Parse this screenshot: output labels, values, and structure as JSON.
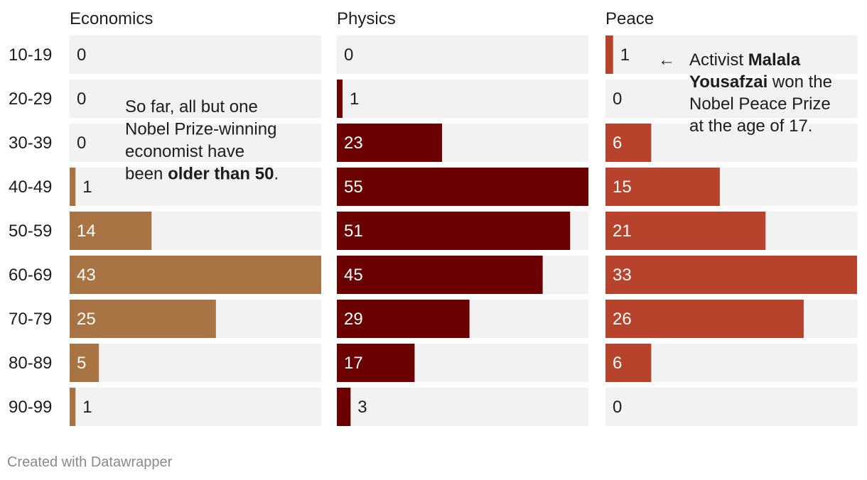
{
  "footer": "Created with Datawrapper",
  "chart_data": {
    "type": "bar",
    "orientation": "horizontal",
    "categories": [
      "10-19",
      "20-29",
      "30-39",
      "40-49",
      "50-59",
      "60-69",
      "70-79",
      "80-89",
      "90-99"
    ],
    "series": [
      {
        "name": "Economics",
        "values": [
          0,
          0,
          0,
          1,
          14,
          43,
          25,
          5,
          1
        ],
        "color": "#a87444",
        "max": 43
      },
      {
        "name": "Physics",
        "values": [
          0,
          1,
          23,
          55,
          51,
          45,
          29,
          17,
          3
        ],
        "color": "#6b0000",
        "max": 55
      },
      {
        "name": "Peace",
        "values": [
          1,
          0,
          6,
          15,
          21,
          33,
          26,
          6,
          0
        ],
        "color": "#b8432d",
        "max": 33
      }
    ],
    "track_color": "#f2f2f2",
    "grid": false,
    "annotations": [
      {
        "panel": "Economics",
        "lines": [
          [
            {
              "text": "So far, all but one",
              "bold": false
            }
          ],
          [
            {
              "text": "Nobel Prize-winning",
              "bold": false
            }
          ],
          [
            {
              "text": "economist have",
              "bold": false
            }
          ],
          [
            {
              "text": "been ",
              "bold": false
            },
            {
              "text": "older than 50",
              "bold": true
            },
            {
              "text": ".",
              "bold": false
            }
          ]
        ]
      },
      {
        "panel": "Peace",
        "arrow": "←",
        "lines": [
          [
            {
              "text": "Activist ",
              "bold": false
            },
            {
              "text": "Malala",
              "bold": true
            }
          ],
          [
            {
              "text": "Yousafzai",
              "bold": true
            },
            {
              "text": " won the",
              "bold": false
            }
          ],
          [
            {
              "text": "Nobel Peace Prize",
              "bold": false
            }
          ],
          [
            {
              "text": "at the age of 17.",
              "bold": false
            }
          ]
        ]
      }
    ]
  }
}
